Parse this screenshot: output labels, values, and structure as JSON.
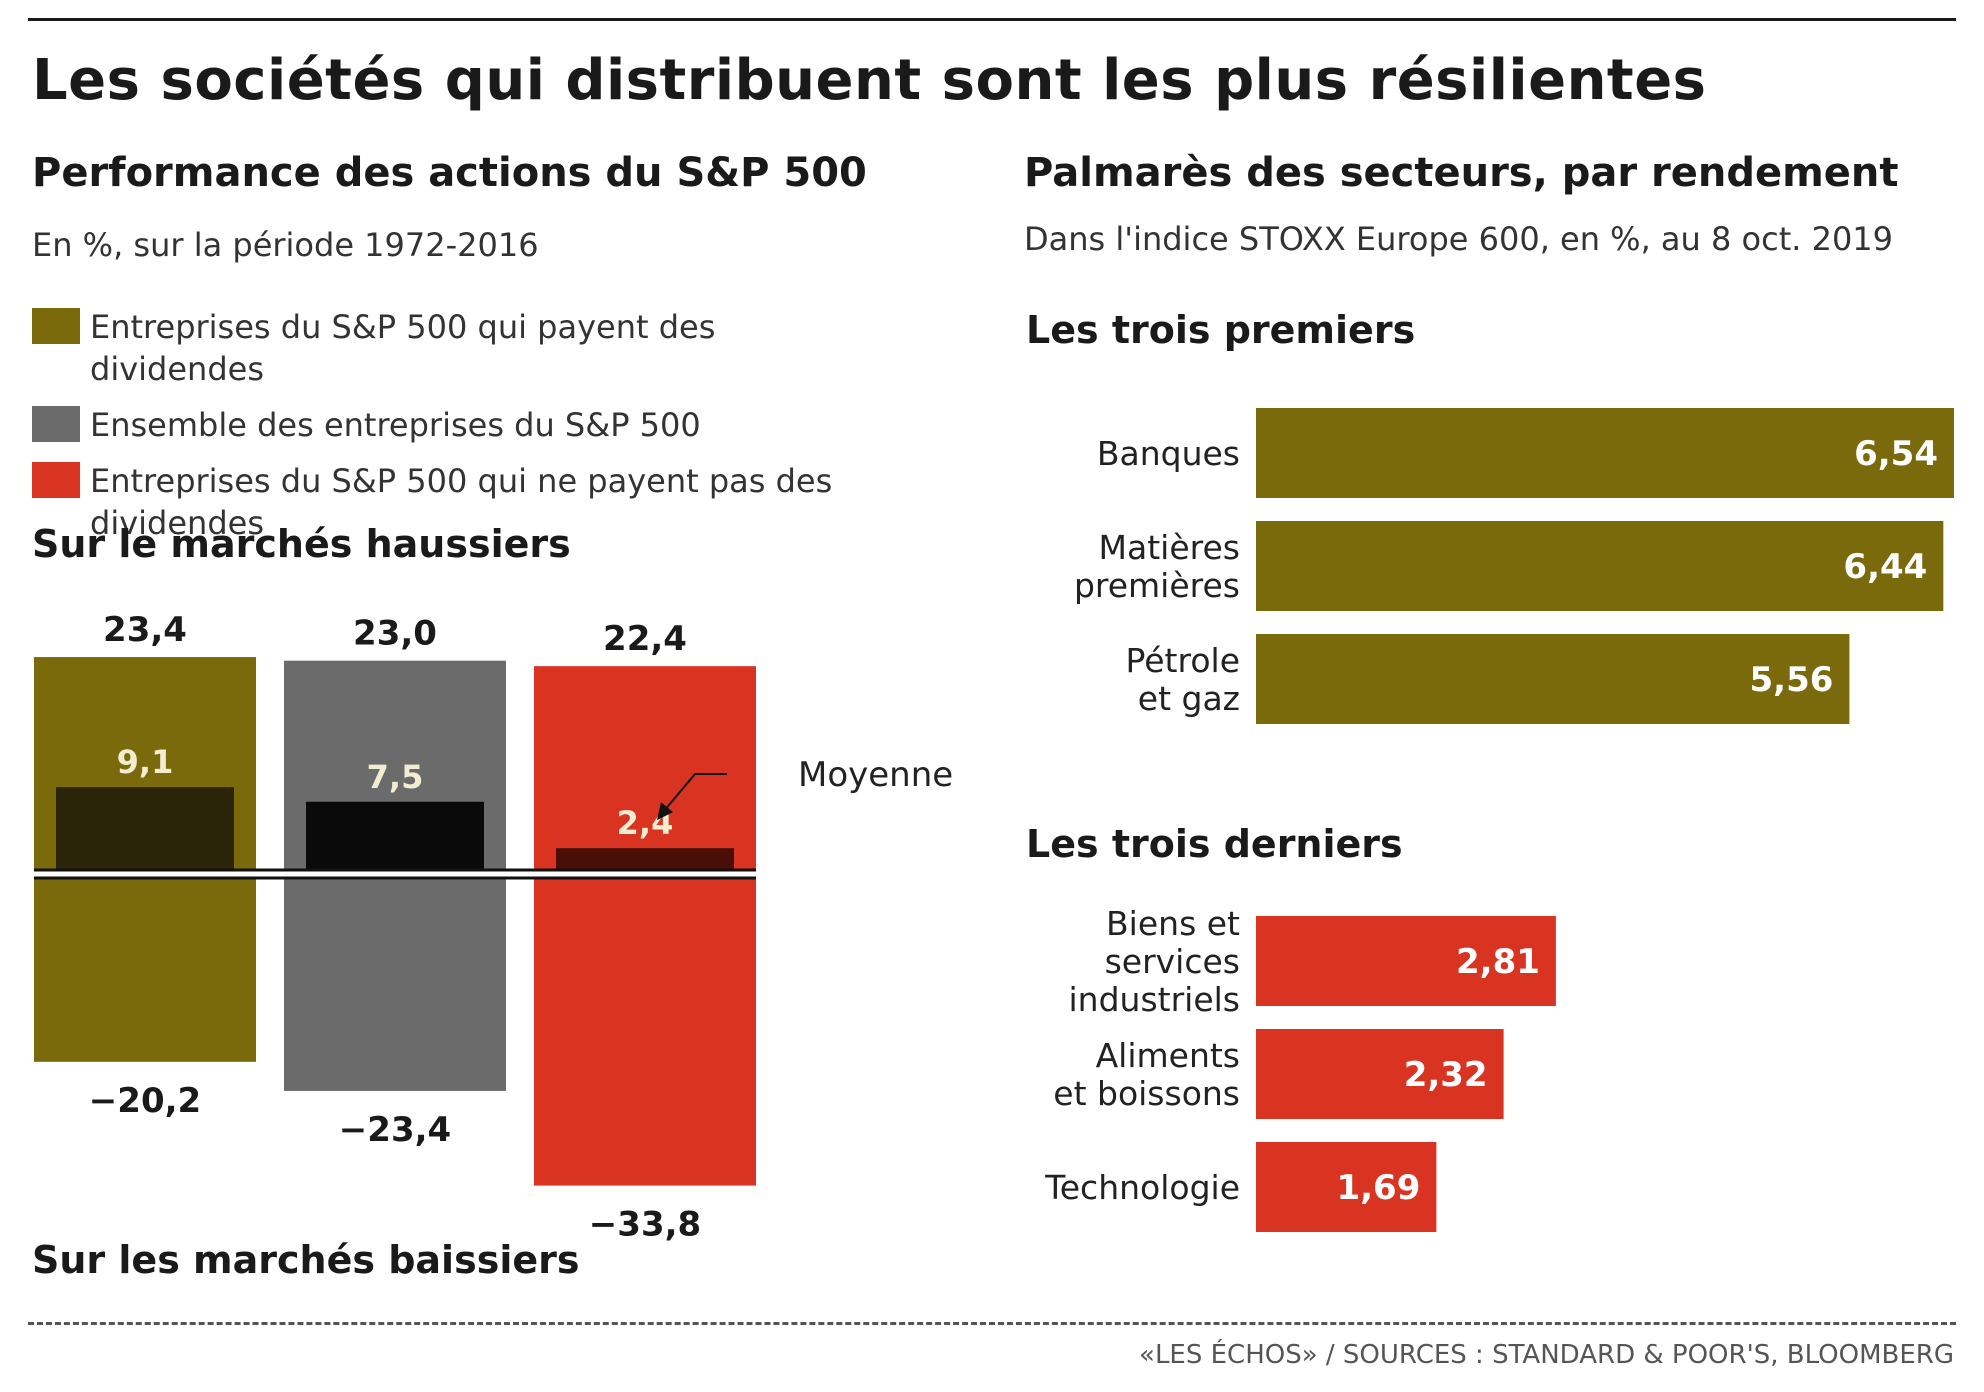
{
  "title": "Les sociétés qui distribuent sont les plus résilientes",
  "left": {
    "heading": "Performance des actions du S&P 500",
    "subheading": "En %, sur la période 1972-2016",
    "legend": [
      {
        "label": "Entreprises du S&P 500 qui payent des dividendes",
        "color": "#7a6a0c"
      },
      {
        "label": "Ensemble des entreprises du S&P 500",
        "color": "#6b6b6b"
      },
      {
        "label": "Entreprises du S&P 500 qui ne payent pas des dividendes",
        "color": "#d93322"
      }
    ],
    "bull_label": "Sur le marchés haussiers",
    "bear_label": "Sur les marchés baissiers",
    "average_annotation": "Moyenne"
  },
  "right": {
    "heading": "Palmarès des secteurs, par rendement",
    "subheading": "Dans l'indice STOXX Europe 600, en %, au 8 oct. 2019",
    "top_label": "Les trois premiers",
    "bottom_label": "Les trois derniers"
  },
  "source": "«LES ÉCHOS» / SOURCES : STANDARD & POOR'S, BLOOMBERG",
  "chart_data": [
    {
      "type": "bar",
      "title": "Performance des actions du S&P 500",
      "categories": [
        "Entreprises du S&P 500 qui payent des dividendes",
        "Ensemble des entreprises du S&P 500",
        "Entreprises du S&P 500 qui ne payent pas des dividendes"
      ],
      "colors": [
        "#7a6a0c",
        "#6b6b6b",
        "#d93322"
      ],
      "average_colors": [
        "#2a2408",
        "#0a0a0a",
        "#4a0e08"
      ],
      "series": [
        {
          "name": "Sur le marchés haussiers",
          "values": [
            23.4,
            23.0,
            22.4
          ],
          "labels": [
            "23,4",
            "23,0",
            "22,4"
          ]
        },
        {
          "name": "Moyenne",
          "values": [
            9.1,
            7.5,
            2.4
          ],
          "labels": [
            "9,1",
            "7,5",
            "2,4"
          ]
        },
        {
          "name": "Sur les marchés baissiers",
          "values": [
            -20.2,
            -23.4,
            -33.8
          ],
          "labels": [
            "−20,2",
            "−23,4",
            "−33,8"
          ]
        }
      ]
    },
    {
      "type": "bar",
      "orientation": "horizontal",
      "title": "Les trois premiers",
      "categories": [
        "Banques",
        "Matières premières",
        "Pétrole et gaz"
      ],
      "category_lines": [
        [
          "Banques"
        ],
        [
          "Matières",
          "premières"
        ],
        [
          "Pétrole",
          "et gaz"
        ]
      ],
      "values": [
        6.54,
        6.44,
        5.56
      ],
      "labels": [
        "6,54",
        "6,44",
        "5,56"
      ],
      "color": "#7a6a0c",
      "xlim": [
        0,
        6.54
      ]
    },
    {
      "type": "bar",
      "orientation": "horizontal",
      "title": "Les trois derniers",
      "categories": [
        "Biens et services industriels",
        "Aliments et boissons",
        "Technologie"
      ],
      "category_lines": [
        [
          "Biens et",
          "services",
          "industriels"
        ],
        [
          "Aliments",
          "et boissons"
        ],
        [
          "Technologie"
        ]
      ],
      "values": [
        2.81,
        2.32,
        1.69
      ],
      "labels": [
        "2,81",
        "2,32",
        "1,69"
      ],
      "color": "#d93322",
      "xlim": [
        0,
        6.54
      ]
    }
  ]
}
